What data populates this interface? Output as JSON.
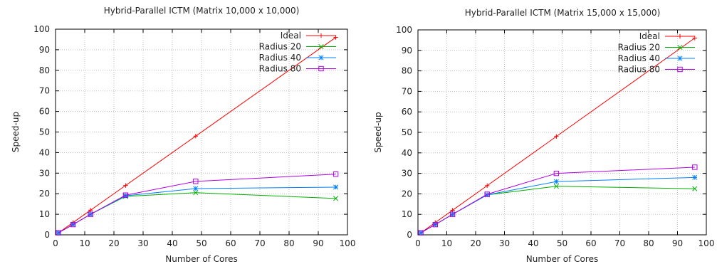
{
  "colors": {
    "ideal": "#ff0000",
    "r20": "#00b000",
    "r40": "#0080ff",
    "r80": "#b000e0"
  },
  "chart_data": [
    {
      "type": "line",
      "title": "Hybrid-Parallel ICTM (Matrix 10,000 x 10,000)",
      "xlabel": "Number of Cores",
      "ylabel": "Speed-up",
      "xlim": [
        0,
        100
      ],
      "ylim": [
        0,
        100
      ],
      "xticks": [
        0,
        10,
        20,
        30,
        40,
        50,
        60,
        70,
        80,
        90,
        100
      ],
      "yticks": [
        0,
        10,
        20,
        30,
        40,
        50,
        60,
        70,
        80,
        90,
        100
      ],
      "grid": true,
      "legend": "top-right",
      "x": [
        1,
        6,
        12,
        24,
        48,
        96
      ],
      "series": [
        {
          "name": "Ideal",
          "marker": "plus",
          "color_key": "ideal",
          "values": [
            1,
            6,
            12,
            24,
            48,
            96
          ]
        },
        {
          "name": "Radius 20",
          "marker": "cross",
          "color_key": "r20",
          "values": [
            1,
            5,
            10,
            18.7,
            20.5,
            17.7
          ]
        },
        {
          "name": "Radius 40",
          "marker": "star",
          "color_key": "r40",
          "values": [
            1,
            5,
            10,
            19,
            22.5,
            23.2
          ]
        },
        {
          "name": "Radius 80",
          "marker": "square",
          "color_key": "r80",
          "values": [
            1,
            5,
            10,
            19.3,
            26,
            29.5
          ]
        }
      ]
    },
    {
      "type": "line",
      "title": "Hybrid-Parallel ICTM (Matrix 15,000 x 15,000)",
      "xlabel": "Number of Cores",
      "ylabel": "Speed-up",
      "xlim": [
        0,
        100
      ],
      "ylim": [
        0,
        100
      ],
      "xticks": [
        0,
        10,
        20,
        30,
        40,
        50,
        60,
        70,
        80,
        90,
        100
      ],
      "yticks": [
        0,
        10,
        20,
        30,
        40,
        50,
        60,
        70,
        80,
        90,
        100
      ],
      "grid": true,
      "legend": "top-right",
      "x": [
        1,
        6,
        12,
        24,
        48,
        96
      ],
      "series": [
        {
          "name": "Ideal",
          "marker": "plus",
          "color_key": "ideal",
          "values": [
            1,
            6,
            12,
            24,
            48,
            96
          ]
        },
        {
          "name": "Radius 20",
          "marker": "cross",
          "color_key": "r20",
          "values": [
            1,
            5,
            10,
            19.5,
            23.7,
            22.5
          ]
        },
        {
          "name": "Radius 40",
          "marker": "star",
          "color_key": "r40",
          "values": [
            1,
            5,
            10,
            19.5,
            26,
            28
          ]
        },
        {
          "name": "Radius 80",
          "marker": "square",
          "color_key": "r80",
          "values": [
            1,
            5,
            10,
            19.8,
            30,
            33
          ]
        }
      ]
    }
  ]
}
